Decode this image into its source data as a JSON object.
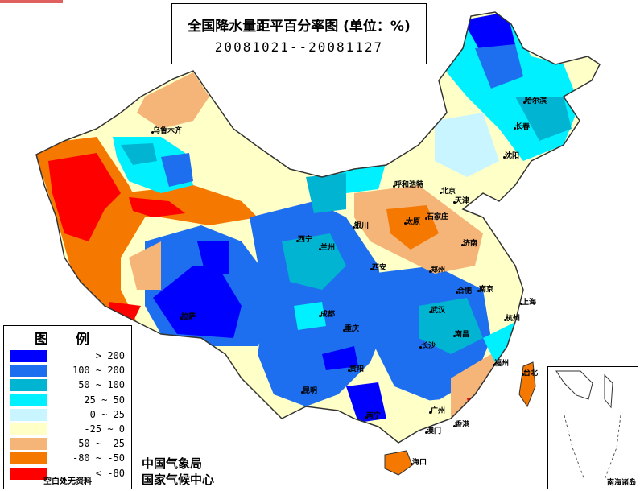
{
  "title": {
    "main": "全国降水量距平百分率图 (单位：%)",
    "period": "20081021--20081127"
  },
  "legend": {
    "title": "图 例",
    "items": [
      {
        "label": "> 200",
        "color": "#0000ff"
      },
      {
        "label": "100 ~ 200",
        "color": "#1e6ff0"
      },
      {
        "label": "50 ~ 100",
        "color": "#00b4d2"
      },
      {
        "label": "25 ~ 50",
        "color": "#00f0ff"
      },
      {
        "label": "0 ~ 25",
        "color": "#c8f5ff"
      },
      {
        "label": "-25 ~ 0",
        "color": "#ffffc8"
      },
      {
        "label": "-50 ~ -25",
        "color": "#f5b478"
      },
      {
        "label": "-80 ~ -50",
        "color": "#f57800"
      },
      {
        "label": "< -80",
        "color": "#ff0000"
      }
    ],
    "note": "空白处无资料"
  },
  "organizations": {
    "line1": "中国气象局",
    "line2": "国家气候中心"
  },
  "inset": {
    "label": "南海诸岛"
  },
  "cities": [
    {
      "name": "乌鲁木齐"
    },
    {
      "name": "哈尔滨"
    },
    {
      "name": "长春"
    },
    {
      "name": "沈阳"
    },
    {
      "name": "呼和浩特"
    },
    {
      "name": "北京"
    },
    {
      "name": "天津"
    },
    {
      "name": "石家庄"
    },
    {
      "name": "太原"
    },
    {
      "name": "济南"
    },
    {
      "name": "银川"
    },
    {
      "name": "西宁"
    },
    {
      "name": "兰州"
    },
    {
      "name": "西安"
    },
    {
      "name": "郑州"
    },
    {
      "name": "合肥"
    },
    {
      "name": "南京"
    },
    {
      "name": "上海"
    },
    {
      "name": "杭州"
    },
    {
      "name": "武汉"
    },
    {
      "name": "成都"
    },
    {
      "name": "重庆"
    },
    {
      "name": "拉萨"
    },
    {
      "name": "长沙"
    },
    {
      "name": "南昌"
    },
    {
      "name": "福州"
    },
    {
      "name": "贵阳"
    },
    {
      "name": "昆明"
    },
    {
      "name": "南宁"
    },
    {
      "name": "广州"
    },
    {
      "name": "香港"
    },
    {
      "name": "澳门"
    },
    {
      "name": "台北"
    },
    {
      "name": "海口"
    }
  ]
}
